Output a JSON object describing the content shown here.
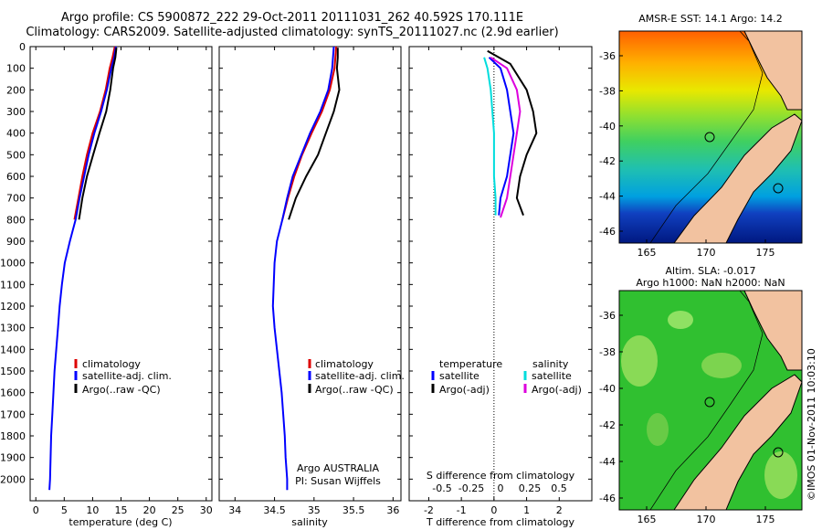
{
  "header": {
    "line1": "Argo profile: CS 5900872_222 29-Oct-2011 20111031_262 40.592S 170.111E",
    "line2": "Climatology: CARS2009. Satellite-adjusted climatology: synTS_20111027.nc (2.9d earlier)"
  },
  "chart_data": [
    {
      "type": "line",
      "xlabel": "temperature (deg C)",
      "ylim": [
        2100,
        0
      ],
      "xlim": [
        -1,
        31
      ],
      "xticks": [
        0,
        5,
        10,
        15,
        20,
        25,
        30
      ],
      "yticks": [
        0,
        100,
        200,
        300,
        400,
        500,
        600,
        700,
        800,
        900,
        1000,
        1100,
        1200,
        1300,
        1400,
        1500,
        1600,
        1700,
        1800,
        1900,
        2000
      ],
      "legend": [
        "climatology",
        "satellite-adj. clim.",
        "Argo(..raw -QC)"
      ],
      "series": [
        {
          "color": "#dd0000",
          "points": [
            [
              13.9,
              0
            ],
            [
              13.5,
              50
            ],
            [
              13.0,
              100
            ],
            [
              12.3,
              200
            ],
            [
              11.3,
              300
            ],
            [
              10.0,
              400
            ],
            [
              9.0,
              500
            ],
            [
              8.2,
              600
            ],
            [
              7.5,
              700
            ],
            [
              6.8,
              800
            ]
          ]
        },
        {
          "color": "#0000ff",
          "points": [
            [
              14.1,
              0
            ],
            [
              13.8,
              50
            ],
            [
              13.3,
              100
            ],
            [
              12.5,
              200
            ],
            [
              11.5,
              300
            ],
            [
              10.3,
              400
            ],
            [
              9.3,
              500
            ],
            [
              8.5,
              600
            ],
            [
              7.7,
              700
            ],
            [
              7.0,
              800
            ],
            [
              6.0,
              900
            ],
            [
              5.1,
              1000
            ],
            [
              4.6,
              1100
            ],
            [
              4.2,
              1200
            ],
            [
              3.9,
              1300
            ],
            [
              3.6,
              1400
            ],
            [
              3.3,
              1500
            ],
            [
              3.1,
              1600
            ],
            [
              2.9,
              1700
            ],
            [
              2.7,
              1800
            ],
            [
              2.6,
              1900
            ],
            [
              2.5,
              2000
            ],
            [
              2.4,
              2050
            ]
          ]
        },
        {
          "color": "#000000",
          "points": [
            [
              14.2,
              5
            ],
            [
              14.0,
              50
            ],
            [
              13.6,
              100
            ],
            [
              13.1,
              200
            ],
            [
              12.4,
              300
            ],
            [
              11.2,
              400
            ],
            [
              10.1,
              500
            ],
            [
              9.0,
              600
            ],
            [
              8.2,
              700
            ],
            [
              7.6,
              800
            ]
          ]
        }
      ]
    },
    {
      "type": "line",
      "xlabel": "salinity",
      "ylim": [
        2100,
        0
      ],
      "xlim": [
        33.8,
        36.1
      ],
      "xticks": [
        34,
        34.5,
        35,
        35.5,
        36
      ],
      "ticklabels": [
        "34",
        "34.5",
        "35",
        "35.5",
        "36"
      ],
      "legend": [
        "climatology",
        "satellite-adj. clim.",
        "Argo(..raw -QC)"
      ],
      "series": [
        {
          "color": "#dd0000",
          "points": [
            [
              35.28,
              0
            ],
            [
              35.26,
              100
            ],
            [
              35.2,
              200
            ],
            [
              35.1,
              300
            ],
            [
              34.97,
              400
            ],
            [
              34.85,
              500
            ],
            [
              34.75,
              600
            ],
            [
              34.67,
              700
            ],
            [
              34.6,
              800
            ]
          ]
        },
        {
          "color": "#0000ff",
          "points": [
            [
              35.25,
              0
            ],
            [
              35.23,
              100
            ],
            [
              35.18,
              200
            ],
            [
              35.08,
              300
            ],
            [
              34.95,
              400
            ],
            [
              34.84,
              500
            ],
            [
              34.73,
              600
            ],
            [
              34.66,
              700
            ],
            [
              34.6,
              800
            ],
            [
              34.53,
              900
            ],
            [
              34.5,
              1000
            ],
            [
              34.49,
              1100
            ],
            [
              34.48,
              1200
            ],
            [
              34.5,
              1300
            ],
            [
              34.53,
              1400
            ],
            [
              34.56,
              1500
            ],
            [
              34.59,
              1600
            ],
            [
              34.61,
              1700
            ],
            [
              34.63,
              1800
            ],
            [
              34.64,
              1900
            ],
            [
              34.66,
              2000
            ],
            [
              34.66,
              2050
            ]
          ]
        },
        {
          "color": "#000000",
          "points": [
            [
              35.3,
              5
            ],
            [
              35.3,
              50
            ],
            [
              35.29,
              100
            ],
            [
              35.32,
              200
            ],
            [
              35.25,
              300
            ],
            [
              35.15,
              400
            ],
            [
              35.05,
              500
            ],
            [
              34.9,
              600
            ],
            [
              34.77,
              700
            ],
            [
              34.68,
              800
            ]
          ]
        }
      ],
      "note_line1": "Argo AUSTRALIA",
      "note_line2": "PI: Susan Wijffels"
    },
    {
      "type": "line",
      "xlabel": "T difference from climatology",
      "secondary_xlabel": "S difference from climatology",
      "ylim": [
        2100,
        0
      ],
      "xlim": [
        -2.6,
        3.0
      ],
      "xticks": [
        -2,
        -1,
        0,
        1,
        2
      ],
      "ticklabels": [
        "-2",
        "-1",
        "0",
        "1",
        "2"
      ],
      "top_ticks": [
        "-0.5",
        "-0.25",
        "0",
        "0.25",
        "0.5"
      ],
      "legend": {
        "temperature_heading": "temperature",
        "salinity_heading": "salinity",
        "items": [
          "satellite",
          "Argo(-adj)",
          "satellite",
          "Argo(-adj)"
        ]
      },
      "series": [
        {
          "color": "#0000ff",
          "points": [
            [
              -0.15,
              50
            ],
            [
              0.2,
              100
            ],
            [
              0.4,
              200
            ],
            [
              0.5,
              300
            ],
            [
              0.6,
              400
            ],
            [
              0.5,
              500
            ],
            [
              0.4,
              600
            ],
            [
              0.2,
              700
            ],
            [
              0.15,
              780
            ]
          ]
        },
        {
          "color": "#000000",
          "points": [
            [
              -0.2,
              20
            ],
            [
              0.5,
              80
            ],
            [
              1.0,
              200
            ],
            [
              1.2,
              300
            ],
            [
              1.3,
              400
            ],
            [
              1.0,
              500
            ],
            [
              0.8,
              600
            ],
            [
              0.7,
              700
            ],
            [
              0.9,
              780
            ]
          ]
        },
        {
          "color": "#00dddd",
          "points": [
            [
              -0.3,
              50
            ],
            [
              -0.2,
              100
            ],
            [
              -0.1,
              200
            ],
            [
              -0.05,
              300
            ],
            [
              0,
              400
            ],
            [
              0,
              500
            ],
            [
              0,
              600
            ],
            [
              0.05,
              700
            ],
            [
              0.05,
              780
            ]
          ]
        },
        {
          "color": "#dd00dd",
          "points": [
            [
              -0.1,
              50
            ],
            [
              0.4,
              100
            ],
            [
              0.7,
              200
            ],
            [
              0.8,
              300
            ],
            [
              0.7,
              400
            ],
            [
              0.6,
              500
            ],
            [
              0.5,
              600
            ],
            [
              0.4,
              700
            ],
            [
              0.2,
              790
            ]
          ]
        }
      ]
    }
  ],
  "maps": [
    {
      "title": "AMSR-E SST: 14.1  Argo: 14.2",
      "title2": "",
      "xticks": [
        "165",
        "170",
        "175"
      ],
      "yticks": [
        "-36",
        "-38",
        "-40",
        "-42",
        "-44",
        "-46"
      ]
    },
    {
      "title": "Altim. SLA: -0.017",
      "title2": "Argo h1000: NaN h2000: NaN",
      "xticks": [
        "165",
        "170",
        "175"
      ],
      "yticks": [
        "-36",
        "-38",
        "-40",
        "-42",
        "-44",
        "-46"
      ]
    }
  ],
  "credit": "©IMOS 01-Nov-2011 10:03:10"
}
